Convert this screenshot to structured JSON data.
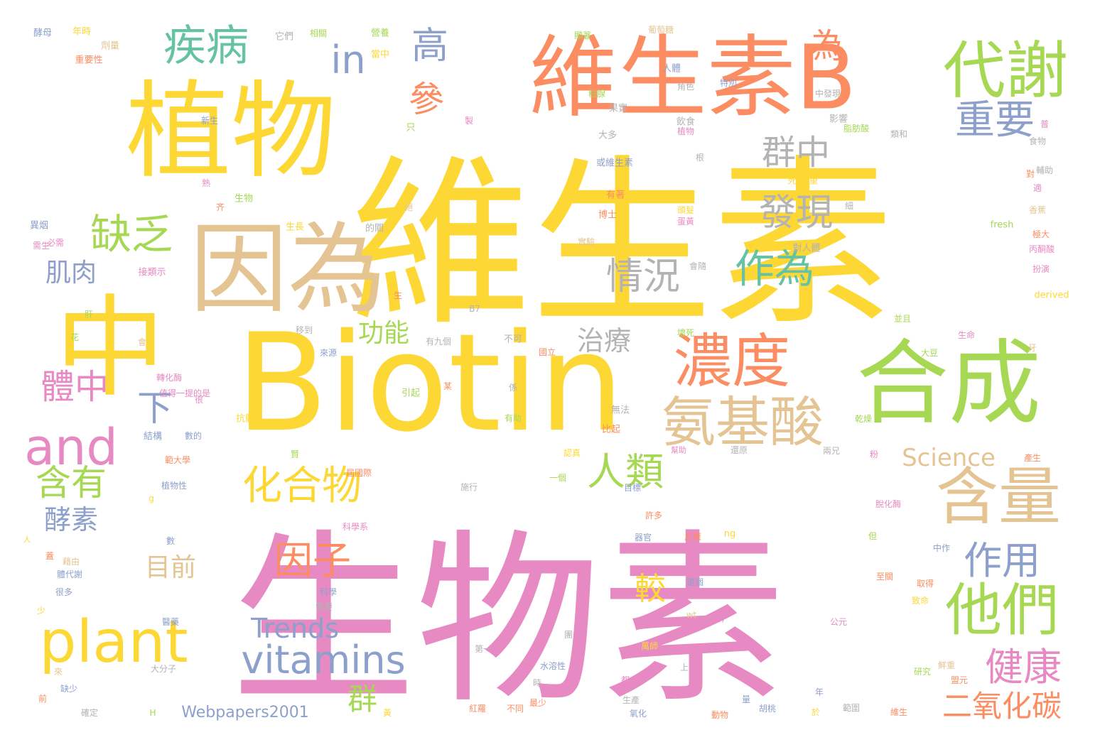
{
  "palette": {
    "yellow": "#FDD835",
    "pink": "#E78AC3",
    "green": "#A6D854",
    "orange": "#FC8D62",
    "tan": "#E5C494",
    "blue": "#8DA0CB",
    "teal": "#66C2A5",
    "gray": "#B3B3B3"
  },
  "words": [
    {
      "text": "維生素",
      "color": "#FDD835"
    },
    {
      "text": "生物素",
      "color": "#E78AC3"
    },
    {
      "text": "Biotin",
      "color": "#FDD835"
    },
    {
      "text": "植物",
      "color": "#FDD835"
    },
    {
      "text": "中",
      "color": "#FDD835"
    },
    {
      "text": "維生素B",
      "color": "#FC8D62"
    },
    {
      "text": "因為",
      "color": "#E5C494"
    },
    {
      "text": "合成",
      "color": "#A6D854"
    },
    {
      "text": "代謝",
      "color": "#A6D854"
    },
    {
      "text": "含量",
      "color": "#E5C494"
    },
    {
      "text": "他們",
      "color": "#A6D854"
    },
    {
      "text": "濃度",
      "color": "#FC8D62"
    },
    {
      "text": "氨基酸",
      "color": "#E5C494"
    },
    {
      "text": "plant",
      "color": "#FDD835"
    },
    {
      "text": "vitamins",
      "color": "#8DA0CB"
    },
    {
      "text": "疾病",
      "color": "#66C2A5"
    },
    {
      "text": "重要",
      "color": "#8DA0CB"
    },
    {
      "text": "發現",
      "color": "#B3B3B3"
    },
    {
      "text": "群中",
      "color": "#B3B3B3"
    },
    {
      "text": "為",
      "color": "#FC8D62"
    },
    {
      "text": "in",
      "color": "#8DA0CB"
    },
    {
      "text": "高",
      "color": "#8DA0CB"
    },
    {
      "text": "參",
      "color": "#FC8D62"
    },
    {
      "text": "缺乏",
      "color": "#A6D854"
    },
    {
      "text": "肌肉",
      "color": "#8DA0CB"
    },
    {
      "text": "情況",
      "color": "#B3B3B3"
    },
    {
      "text": "作為",
      "color": "#66C2A5"
    },
    {
      "text": "化合物",
      "color": "#FDD835"
    },
    {
      "text": "人類",
      "color": "#A6D854"
    },
    {
      "text": "因子",
      "color": "#FC8D62"
    },
    {
      "text": "and",
      "color": "#E78AC3"
    },
    {
      "text": "含有",
      "color": "#A6D854"
    },
    {
      "text": "體中",
      "color": "#E78AC3"
    },
    {
      "text": "功能",
      "color": "#A6D854"
    },
    {
      "text": "治療",
      "color": "#B3B3B3"
    },
    {
      "text": "下",
      "color": "#8DA0CB"
    },
    {
      "text": "酵素",
      "color": "#8DA0CB"
    },
    {
      "text": "目前",
      "color": "#E5C494"
    },
    {
      "text": "作用",
      "color": "#8DA0CB"
    },
    {
      "text": "較",
      "color": "#FDD835"
    },
    {
      "text": "健康",
      "color": "#E78AC3"
    },
    {
      "text": "二氧化碳",
      "color": "#FC8D62"
    },
    {
      "text": "群",
      "color": "#A6D854"
    },
    {
      "text": "Trends",
      "color": "#8DA0CB"
    },
    {
      "text": "Science",
      "color": "#E5C494"
    },
    {
      "text": "Webpapers2001",
      "color": "#8DA0CB"
    },
    {
      "text": "酵母",
      "color": "#8DA0CB"
    },
    {
      "text": "年時",
      "color": "#FDD835"
    },
    {
      "text": "劑量",
      "color": "#E5C494"
    },
    {
      "text": "重要性",
      "color": "#FC8D62"
    },
    {
      "text": "它們",
      "color": "#B3B3B3"
    },
    {
      "text": "相關",
      "color": "#A6D854"
    },
    {
      "text": "當中",
      "color": "#FDD835"
    },
    {
      "text": "營養",
      "color": "#A6D854"
    },
    {
      "text": "顯著",
      "color": "#A6D854"
    },
    {
      "text": "葡萄糖",
      "color": "#E5C494"
    },
    {
      "text": "人體",
      "color": "#8DA0CB"
    },
    {
      "text": "特別",
      "color": "#8DA0CB"
    },
    {
      "text": "角色",
      "color": "#B3B3B3"
    },
    {
      "text": "粒腺",
      "color": "#A6D854"
    },
    {
      "text": "果實",
      "color": "#B3B3B3"
    },
    {
      "text": "飲食",
      "color": "#B3B3B3"
    },
    {
      "text": "中發現",
      "color": "#B3B3B3"
    },
    {
      "text": "影響",
      "color": "#B3B3B3"
    },
    {
      "text": "新生",
      "color": "#8DA0CB"
    },
    {
      "text": "只",
      "color": "#A6D854"
    },
    {
      "text": "大多",
      "color": "#B3B3B3"
    },
    {
      "text": "植物",
      "color": "#E78AC3"
    },
    {
      "text": "脂肪酸",
      "color": "#A6D854"
    },
    {
      "text": "類和",
      "color": "#B3B3B3"
    },
    {
      "text": "食物",
      "color": "#B3B3B3"
    },
    {
      "text": "或維生素",
      "color": "#8DA0CB"
    },
    {
      "text": "根",
      "color": "#B3B3B3"
    },
    {
      "text": "死 鮮重",
      "color": "#FDD835"
    },
    {
      "text": "對",
      "color": "#FC8D62"
    },
    {
      "text": "生物",
      "color": "#A6D854"
    },
    {
      "text": "有著",
      "color": "#FC8D62"
    },
    {
      "text": "博士",
      "color": "#FC8D62"
    },
    {
      "text": "頭髮",
      "color": "#FDD835"
    },
    {
      "text": "蛋黃",
      "color": "#E78AC3"
    },
    {
      "text": "香蕉",
      "color": "#E5C494"
    },
    {
      "text": "異烟",
      "color": "#8DA0CB"
    },
    {
      "text": "生長",
      "color": "#FDD835"
    },
    {
      "text": "的關",
      "color": "#B3B3B3"
    },
    {
      "text": "fresh",
      "color": "#A6D854"
    },
    {
      "text": "極大",
      "color": "#FC8D62"
    },
    {
      "text": "必需",
      "color": "#E78AC3"
    },
    {
      "text": "實驗",
      "color": "#E5C494"
    },
    {
      "text": "對人體",
      "color": "#B3B3B3"
    },
    {
      "text": "丙酮酸",
      "color": "#E78AC3"
    },
    {
      "text": "接類示",
      "color": "#E78AC3"
    },
    {
      "text": "會隨",
      "color": "#B3B3B3"
    },
    {
      "text": "扮演",
      "color": "#E78AC3"
    },
    {
      "text": "derived",
      "color": "#FDD835"
    },
    {
      "text": "肝",
      "color": "#A6D854"
    },
    {
      "text": "B7",
      "color": "#B3B3B3"
    },
    {
      "text": "生",
      "color": "#FC8D62"
    },
    {
      "text": "花",
      "color": "#A6D854"
    },
    {
      "text": "移到",
      "color": "#B3B3B3"
    },
    {
      "text": "並且",
      "color": "#A6D854"
    },
    {
      "text": "會",
      "color": "#E5C494"
    },
    {
      "text": "有九個",
      "color": "#B3B3B3"
    },
    {
      "text": "不可",
      "color": "#B3B3B3"
    },
    {
      "text": "國立",
      "color": "#FC8D62"
    },
    {
      "text": "壞死",
      "color": "#A6D854"
    },
    {
      "text": "生命",
      "color": "#E78AC3"
    },
    {
      "text": "來源",
      "color": "#8DA0CB"
    },
    {
      "text": "大豆",
      "color": "#A6D854"
    },
    {
      "text": "轉化酶",
      "color": "#E78AC3"
    },
    {
      "text": "值得一提的是",
      "color": "#E78AC3"
    },
    {
      "text": "很",
      "color": "#E78AC3"
    },
    {
      "text": "引起",
      "color": "#A6D854"
    },
    {
      "text": "某",
      "color": "#FC8D62"
    },
    {
      "text": "係",
      "color": "#B3B3B3"
    },
    {
      "text": "無法",
      "color": "#B3B3B3"
    },
    {
      "text": "抗體",
      "color": "#FDD835"
    },
    {
      "text": "有助",
      "color": "#A6D854"
    },
    {
      "text": "乾燥",
      "color": "#A6D854"
    },
    {
      "text": "比起",
      "color": "#FC8D62"
    },
    {
      "text": "結構",
      "color": "#8DA0CB"
    },
    {
      "text": "數的",
      "color": "#8DA0CB"
    },
    {
      "text": "賢",
      "color": "#A6D854"
    },
    {
      "text": "認真",
      "color": "#FDD835"
    },
    {
      "text": "幫助",
      "color": "#E78AC3"
    },
    {
      "text": "還原",
      "color": "#B3B3B3"
    },
    {
      "text": "兩兄",
      "color": "#B3B3B3"
    },
    {
      "text": "粉",
      "color": "#E78AC3"
    },
    {
      "text": "產生",
      "color": "#FC8D62"
    },
    {
      "text": "範大學",
      "color": "#FC8D62"
    },
    {
      "text": "屆國際",
      "color": "#FC8D62"
    },
    {
      "text": "一個",
      "color": "#A6D854"
    },
    {
      "text": "施行",
      "color": "#B3B3B3"
    },
    {
      "text": "目標",
      "color": "#8DA0CB"
    },
    {
      "text": "植物性",
      "color": "#8DA0CB"
    },
    {
      "text": "g",
      "color": "#FDD835"
    },
    {
      "text": "許多",
      "color": "#FC8D62"
    },
    {
      "text": "科學系",
      "color": "#E78AC3"
    },
    {
      "text": "脫化酶",
      "color": "#E78AC3"
    },
    {
      "text": "人",
      "color": "#FDD835"
    },
    {
      "text": "數",
      "color": "#8DA0CB"
    },
    {
      "text": "器官",
      "color": "#8DA0CB"
    },
    {
      "text": "反應",
      "color": "#FC8D62"
    },
    {
      "text": "ng",
      "color": "#FDD835"
    },
    {
      "text": "但",
      "color": "#A6D854"
    },
    {
      "text": "中作",
      "color": "#8DA0CB"
    },
    {
      "text": "蓋",
      "color": "#FC8D62"
    },
    {
      "text": "藉由",
      "color": "#E5C494"
    },
    {
      "text": "體代謝",
      "color": "#8DA0CB"
    },
    {
      "text": "很多",
      "color": "#8DA0CB"
    },
    {
      "text": "還個",
      "color": "#8DA0CB"
    },
    {
      "text": "至關",
      "color": "#FC8D62"
    },
    {
      "text": "取得",
      "color": "#FC8D62"
    },
    {
      "text": "致命",
      "color": "#FDD835"
    },
    {
      "text": "科學",
      "color": "#8DA0CB"
    },
    {
      "text": "需要",
      "color": "#B3B3B3"
    },
    {
      "text": "少",
      "color": "#FDD835"
    },
    {
      "text": "醫藥",
      "color": "#8DA0CB"
    },
    {
      "text": "wt",
      "color": "#E5C494"
    },
    {
      "text": "稱",
      "color": "#E78AC3"
    },
    {
      "text": "公元",
      "color": "#E78AC3"
    },
    {
      "text": "團",
      "color": "#B3B3B3"
    },
    {
      "text": "萬師",
      "color": "#FDD835"
    },
    {
      "text": "第一",
      "color": "#B3B3B3"
    },
    {
      "text": "水溶性",
      "color": "#8DA0CB"
    },
    {
      "text": "上",
      "color": "#B3B3B3"
    },
    {
      "text": "研究",
      "color": "#A6D854"
    },
    {
      "text": "鮮重",
      "color": "#E5C494"
    },
    {
      "text": "盟元",
      "color": "#FC8D62"
    },
    {
      "text": "來",
      "color": "#E5C494"
    },
    {
      "text": "大分子",
      "color": "#B3B3B3"
    },
    {
      "text": "都",
      "color": "#E78AC3"
    },
    {
      "text": "時",
      "color": "#B3B3B3"
    },
    {
      "text": "年",
      "color": "#8DA0CB"
    },
    {
      "text": "缺少",
      "color": "#8DA0CB"
    },
    {
      "text": "前",
      "color": "#FC8D62"
    },
    {
      "text": "最少",
      "color": "#FC8D62"
    },
    {
      "text": "生產",
      "color": "#B3B3B3"
    },
    {
      "text": "量",
      "color": "#8DA0CB"
    },
    {
      "text": "胡桃",
      "color": "#8DA0CB"
    },
    {
      "text": "確定",
      "color": "#B3B3B3"
    },
    {
      "text": "H",
      "color": "#A6D854"
    },
    {
      "text": "紅羅",
      "color": "#FC8D62"
    },
    {
      "text": "不同",
      "color": "#FC8D62"
    },
    {
      "text": "氧化",
      "color": "#8DA0CB"
    },
    {
      "text": "動物",
      "color": "#FC8D62"
    },
    {
      "text": "於",
      "color": "#FDD835"
    },
    {
      "text": "範圍",
      "color": "#B3B3B3"
    },
    {
      "text": "維生",
      "color": "#FC8D62"
    },
    {
      "text": "黃",
      "color": "#FDD835"
    },
    {
      "text": "製",
      "color": "#E78AC3"
    },
    {
      "text": "普",
      "color": "#E78AC3"
    },
    {
      "text": "輔助",
      "color": "#B3B3B3"
    },
    {
      "text": "適",
      "color": "#E78AC3"
    },
    {
      "text": "絕",
      "color": "#E5C494"
    },
    {
      "text": "齐",
      "color": "#FC8D62"
    },
    {
      "text": "熟",
      "color": "#E78AC3"
    },
    {
      "text": "細",
      "color": "#B3B3B3"
    },
    {
      "text": "牙",
      "color": "#E5C494"
    },
    {
      "text": "需生",
      "color": "#E78AC3"
    }
  ]
}
